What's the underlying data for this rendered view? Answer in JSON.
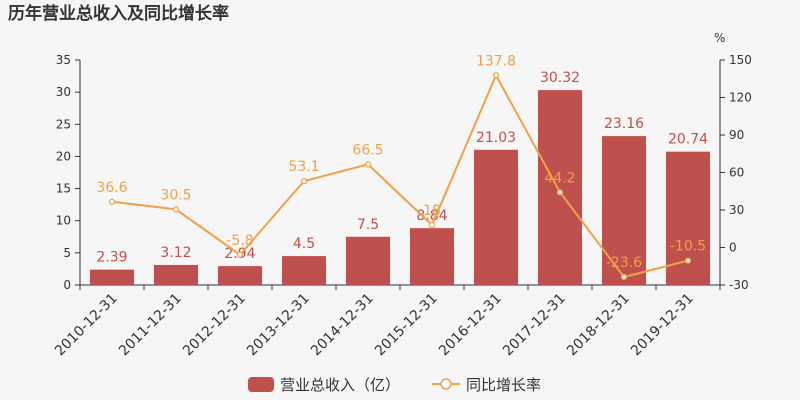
{
  "chart_data": {
    "type": "bar",
    "title": "历年营业总收入及同比增长率",
    "categories": [
      "2010-12-31",
      "2011-12-31",
      "2012-12-31",
      "2013-12-31",
      "2014-12-31",
      "2015-12-31",
      "2016-12-31",
      "2017-12-31",
      "2018-12-31",
      "2019-12-31"
    ],
    "series": [
      {
        "name": "营业总收入（亿）",
        "type": "bar",
        "axis": "left",
        "color": "#c0504d",
        "values": [
          2.39,
          3.12,
          2.94,
          4.5,
          7.5,
          8.84,
          21.03,
          30.32,
          23.16,
          20.74
        ],
        "labels": [
          "2.39",
          "3.12",
          "2.94",
          "4.5",
          "7.5",
          "8.84",
          "21.03",
          "30.32",
          "23.16",
          "20.74"
        ]
      },
      {
        "name": "同比增长率",
        "type": "line",
        "axis": "right",
        "color": "#f29f4a",
        "values": [
          36.6,
          30.5,
          -5.8,
          53.1,
          66.5,
          18,
          137.8,
          44.2,
          -23.6,
          -10.5
        ],
        "labels": [
          "36.6",
          "30.5",
          "-5.8",
          "53.1",
          "66.5",
          "18",
          "137.8",
          "44.2",
          "-23.6",
          "-10.5"
        ]
      }
    ],
    "y_left": {
      "min": 0,
      "max": 35,
      "ticks": [
        "0",
        "5",
        "10",
        "15",
        "20",
        "25",
        "30",
        "35"
      ]
    },
    "y_right": {
      "min": -30,
      "max": 150,
      "unit": "%",
      "ticks": [
        "-30",
        "0",
        "30",
        "60",
        "90",
        "120",
        "150"
      ]
    },
    "legend_position": "bottom-center",
    "grid": false
  }
}
